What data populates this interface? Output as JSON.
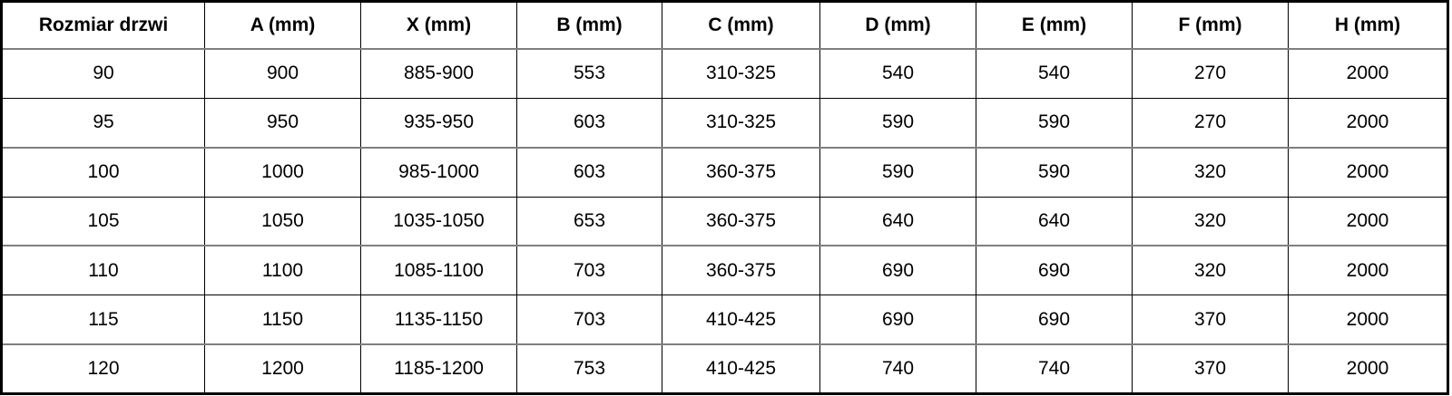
{
  "table": {
    "headers": [
      "Rozmiar drzwi",
      "A (mm)",
      "X (mm)",
      "B (mm)",
      "C (mm)",
      "D (mm)",
      "E (mm)",
      "F (mm)",
      "H (mm)"
    ],
    "rows": [
      [
        "90",
        "900",
        "885-900",
        "553",
        "310-325",
        "540",
        "540",
        "270",
        "2000"
      ],
      [
        "95",
        "950",
        "935-950",
        "603",
        "310-325",
        "590",
        "590",
        "270",
        "2000"
      ],
      [
        "100",
        "1000",
        "985-1000",
        "603",
        "360-375",
        "590",
        "590",
        "320",
        "2000"
      ],
      [
        "105",
        "1050",
        "1035-1050",
        "653",
        "360-375",
        "640",
        "640",
        "320",
        "2000"
      ],
      [
        "110",
        "1100",
        "1085-1100",
        "703",
        "360-375",
        "690",
        "690",
        "320",
        "2000"
      ],
      [
        "115",
        "1150",
        "1135-1150",
        "703",
        "410-425",
        "690",
        "690",
        "370",
        "2000"
      ],
      [
        "120",
        "1200",
        "1185-1200",
        "753",
        "410-425",
        "740",
        "740",
        "370",
        "2000"
      ]
    ],
    "colors": {
      "border": "#000000",
      "separator": "#7f7f7f",
      "text": "#000000",
      "background": "#ffffff"
    }
  }
}
